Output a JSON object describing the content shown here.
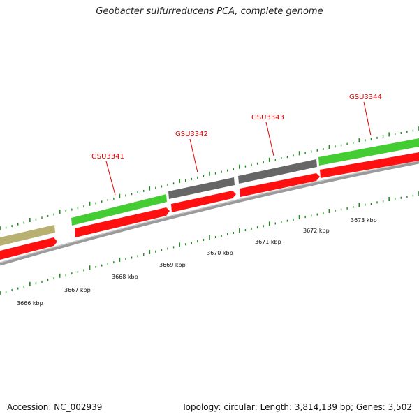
{
  "title": "Geobacter sulfurreducens PCA, complete genome",
  "footer": {
    "accession": "Accession: NC_002939",
    "summary": "Topology: circular; Length: 3,814,139 bp; Genes: 3,502"
  },
  "colors": {
    "gene_label": "#e00000",
    "cds_red": "#ff1010",
    "feature_green": "#44cc33",
    "feature_gray": "#666666",
    "feature_olive": "#b8b070",
    "backbone": "#888888",
    "tick_green": "#1e8a1e"
  },
  "gene_labels": [
    "GSU3341",
    "GSU3342",
    "GSU3343",
    "GSU3344"
  ],
  "kbp_labels": [
    "3666 kbp",
    "3667 kbp",
    "3668 kbp",
    "3669 kbp",
    "3670 kbp",
    "3671 kbp",
    "3672 kbp",
    "3673 kbp"
  ]
}
